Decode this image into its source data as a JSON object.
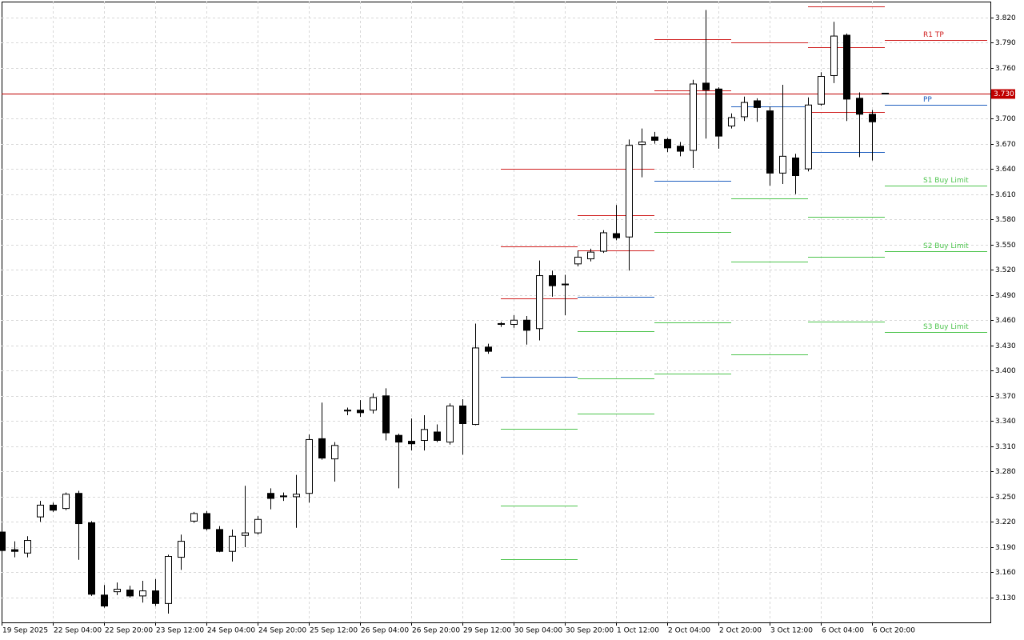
{
  "chart_data": {
    "type": "candlestick",
    "categories": [
      "19 Sep 2025",
      null,
      null,
      null,
      "22 Sep 04:00",
      null,
      null,
      null,
      "22 Sep 20:00",
      null,
      null,
      null,
      "23 Sep 12:00",
      null,
      null,
      null,
      "24 Sep 04:00",
      null,
      null,
      null,
      "24 Sep 20:00",
      null,
      null,
      null,
      "25 Sep 12:00",
      null,
      null,
      null,
      "26 Sep 04:00",
      null,
      null,
      null,
      "26 Sep 20:00",
      null,
      null,
      null,
      "29 Sep 12:00",
      null,
      null,
      null,
      "30 Sep 04:00",
      null,
      null,
      null,
      "30 Sep 20:00",
      null,
      null,
      null,
      "1 Oct 12:00",
      null,
      null,
      null,
      "2 Oct 04:00",
      null,
      null,
      null,
      "2 Oct 20:00",
      null,
      null,
      null,
      "3 Oct 12:00",
      null,
      null,
      null,
      "6 Oct 04:00",
      null,
      null,
      null,
      "6 Oct 20:00",
      null
    ],
    "open": [
      3.208,
      3.187,
      3.183,
      3.226,
      3.24,
      3.236,
      3.254,
      3.219,
      3.133,
      3.137,
      3.139,
      3.132,
      3.138,
      3.123,
      3.178,
      3.221,
      3.23,
      3.211,
      3.185,
      3.204,
      3.207,
      3.254,
      3.251,
      3.25,
      3.254,
      3.319,
      3.295,
      3.352,
      3.353,
      3.353,
      3.37,
      3.323,
      3.316,
      3.317,
      3.327,
      3.315,
      3.358,
      3.336,
      3.428,
      3.456,
      3.455,
      3.46,
      3.45,
      3.513,
      3.503,
      3.527,
      3.533,
      3.542,
      3.563,
      3.559,
      3.669,
      3.678,
      3.675,
      3.667,
      3.662,
      3.742,
      3.735,
      3.691,
      3.702,
      3.721,
      3.709,
      3.635,
      3.653,
      3.64,
      3.717,
      3.751,
      3.799,
      3.724,
      3.705,
      3.73
    ],
    "high": [
      3.212,
      3.197,
      3.203,
      3.245,
      3.243,
      3.255,
      3.257,
      3.221,
      3.145,
      3.148,
      3.144,
      3.15,
      3.152,
      3.181,
      3.205,
      3.232,
      3.233,
      3.215,
      3.211,
      3.263,
      3.227,
      3.26,
      3.255,
      3.276,
      3.324,
      3.362,
      3.315,
      3.356,
      3.365,
      3.373,
      3.379,
      3.325,
      3.343,
      3.347,
      3.336,
      3.361,
      3.366,
      3.456,
      3.432,
      3.458,
      3.466,
      3.465,
      3.531,
      3.519,
      3.514,
      3.543,
      3.545,
      3.567,
      3.597,
      3.675,
      3.688,
      3.684,
      3.677,
      3.672,
      3.746,
      3.829,
      3.737,
      3.706,
      3.726,
      3.724,
      3.714,
      3.74,
      3.658,
      3.725,
      3.755,
      3.815,
      3.801,
      3.731,
      3.71,
      3.73
    ],
    "low": [
      3.184,
      3.178,
      3.178,
      3.22,
      3.232,
      3.234,
      3.175,
      3.132,
      3.118,
      3.133,
      3.13,
      3.124,
      3.12,
      3.111,
      3.163,
      3.219,
      3.21,
      3.184,
      3.173,
      3.19,
      3.205,
      3.235,
      3.245,
      3.213,
      3.243,
      3.294,
      3.268,
      3.347,
      3.345,
      3.349,
      3.317,
      3.26,
      3.305,
      3.305,
      3.315,
      3.312,
      3.3,
      3.335,
      3.42,
      3.452,
      3.451,
      3.431,
      3.436,
      3.488,
      3.466,
      3.524,
      3.53,
      3.54,
      3.555,
      3.519,
      3.63,
      3.67,
      3.66,
      3.655,
      3.641,
      3.676,
      3.664,
      3.688,
      3.697,
      3.696,
      3.62,
      3.622,
      3.61,
      3.637,
      3.715,
      3.742,
      3.697,
      3.654,
      3.65,
      3.73
    ],
    "close": [
      3.186,
      3.185,
      3.198,
      3.24,
      3.234,
      3.253,
      3.218,
      3.134,
      3.12,
      3.14,
      3.132,
      3.138,
      3.123,
      3.179,
      3.197,
      3.23,
      3.212,
      3.185,
      3.203,
      3.207,
      3.223,
      3.248,
      3.25,
      3.253,
      3.318,
      3.296,
      3.311,
      3.353,
      3.35,
      3.368,
      3.326,
      3.315,
      3.313,
      3.33,
      3.317,
      3.358,
      3.337,
      3.427,
      3.423,
      3.455,
      3.46,
      3.448,
      3.513,
      3.501,
      3.503,
      3.535,
      3.541,
      3.564,
      3.558,
      3.668,
      3.672,
      3.674,
      3.665,
      3.661,
      3.741,
      3.734,
      3.679,
      3.701,
      3.719,
      3.713,
      3.635,
      3.655,
      3.632,
      3.716,
      3.75,
      3.798,
      3.723,
      3.705,
      3.696,
      3.73
    ],
    "up_color": "#ffffff",
    "down_color": "#000000",
    "wick_color": "#000000",
    "pivots": [
      {
        "start": 39,
        "end": 45,
        "levels": [
          {
            "value": 3.64,
            "color": "#d02020"
          },
          {
            "value": 3.548,
            "color": "#d02020"
          },
          {
            "value": 3.486,
            "color": "#d02020"
          },
          {
            "value": 3.393,
            "color": "#1f5fbf"
          },
          {
            "value": 3.331,
            "color": "#4cc44c"
          },
          {
            "value": 3.239,
            "color": "#4cc44c"
          },
          {
            "value": 3.176,
            "color": "#4cc44c"
          }
        ]
      },
      {
        "start": 45,
        "end": 51,
        "levels": [
          {
            "value": 3.64,
            "color": "#d02020"
          },
          {
            "value": 3.585,
            "color": "#d02020"
          },
          {
            "value": 3.543,
            "color": "#d02020"
          },
          {
            "value": 3.488,
            "color": "#1f5fbf"
          },
          {
            "value": 3.447,
            "color": "#4cc44c"
          },
          {
            "value": 3.391,
            "color": "#4cc44c"
          },
          {
            "value": 3.349,
            "color": "#4cc44c"
          }
        ]
      },
      {
        "start": 51,
        "end": 57,
        "levels": [
          {
            "value": 3.794,
            "color": "#d02020"
          },
          {
            "value": 3.733,
            "color": "#d02020"
          },
          {
            "value": 3.626,
            "color": "#1f5fbf"
          },
          {
            "value": 3.565,
            "color": "#4cc44c"
          },
          {
            "value": 3.457,
            "color": "#4cc44c"
          },
          {
            "value": 3.396,
            "color": "#4cc44c"
          }
        ]
      },
      {
        "start": 57,
        "end": 63,
        "levels": [
          {
            "value": 3.79,
            "color": "#d02020"
          },
          {
            "value": 3.714,
            "color": "#1f5fbf"
          },
          {
            "value": 3.605,
            "color": "#4cc44c"
          },
          {
            "value": 3.53,
            "color": "#4cc44c"
          },
          {
            "value": 3.419,
            "color": "#4cc44c"
          }
        ]
      },
      {
        "start": 63,
        "end": 69,
        "levels": [
          {
            "value": 3.833,
            "color": "#d02020"
          },
          {
            "value": 3.785,
            "color": "#d02020"
          },
          {
            "value": 3.708,
            "color": "#d02020"
          },
          {
            "value": 3.66,
            "color": "#1f5fbf"
          },
          {
            "value": 3.583,
            "color": "#4cc44c"
          },
          {
            "value": 3.535,
            "color": "#4cc44c"
          },
          {
            "value": 3.458,
            "color": "#4cc44c"
          }
        ]
      },
      {
        "start": 69,
        "end": 77,
        "levels": [
          {
            "value": 3.793,
            "color": "#d02020",
            "label": "R1 TP"
          },
          {
            "value": 3.716,
            "color": "#1f5fbf",
            "label": "PP"
          },
          {
            "value": 3.62,
            "color": "#4cc44c",
            "label": "S1 Buy Limit"
          },
          {
            "value": 3.542,
            "color": "#4cc44c",
            "label": "S2 Buy Limit"
          },
          {
            "value": 3.446,
            "color": "#4cc44c",
            "label": "S3 Buy Limit"
          }
        ]
      }
    ],
    "current_price": {
      "value": 3.73,
      "label": "3.730",
      "color": "#c00000"
    },
    "ylim": [
      3.1005,
      3.839
    ],
    "yticks": [
      {
        "value": 3.13,
        "label": "3.130"
      },
      {
        "value": 3.16,
        "label": "3.160"
      },
      {
        "value": 3.19,
        "label": "3.190"
      },
      {
        "value": 3.22,
        "label": "3.220"
      },
      {
        "value": 3.25,
        "label": "3.250"
      },
      {
        "value": 3.28,
        "label": "3.280"
      },
      {
        "value": 3.31,
        "label": "3.310"
      },
      {
        "value": 3.34,
        "label": "3.340"
      },
      {
        "value": 3.37,
        "label": "3.370"
      },
      {
        "value": 3.4,
        "label": "3.400"
      },
      {
        "value": 3.43,
        "label": "3.430"
      },
      {
        "value": 3.46,
        "label": "3.460"
      },
      {
        "value": 3.49,
        "label": "3.490"
      },
      {
        "value": 3.52,
        "label": "3.520"
      },
      {
        "value": 3.55,
        "label": "3.550"
      },
      {
        "value": 3.58,
        "label": "3.580"
      },
      {
        "value": 3.61,
        "label": "3.610"
      },
      {
        "value": 3.64,
        "label": "3.640"
      },
      {
        "value": 3.67,
        "label": "3.670"
      },
      {
        "value": 3.7,
        "label": "3.700"
      },
      {
        "value": 3.73,
        "label": "3.730"
      },
      {
        "value": 3.76,
        "label": "3.760"
      },
      {
        "value": 3.79,
        "label": "3.790"
      },
      {
        "value": 3.82,
        "label": "3.820"
      }
    ],
    "grid": true
  }
}
